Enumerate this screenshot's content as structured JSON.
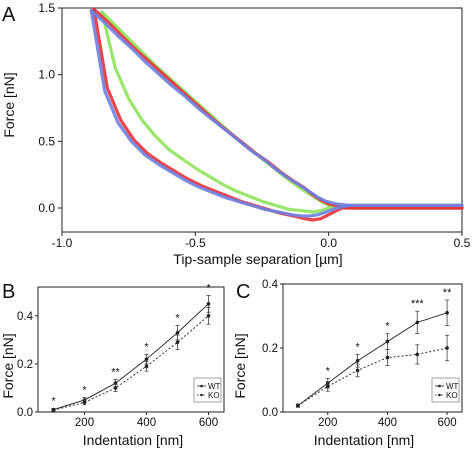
{
  "chart_data": [
    {
      "panel_label": "A",
      "type": "line",
      "xlabel": "Tip-sample separation [µm]",
      "ylabel": "Force [nN]",
      "xlim": [
        -1.0,
        0.5
      ],
      "ylim": [
        -0.18,
        1.5
      ],
      "xticks": [
        -1.0,
        -0.5,
        0.0,
        0.5
      ],
      "xtick_labels": [
        "-1.0",
        "-0.5",
        "0.0",
        "0.5"
      ],
      "yticks": [
        0.0,
        0.5,
        1.0,
        1.5
      ],
      "ytick_labels": [
        "0.0",
        "0.5",
        "1.0",
        "1.5"
      ],
      "grid": false,
      "series": [
        {
          "color": "#8fe35a",
          "x": [
            -0.85,
            -0.8,
            -0.75,
            -0.7,
            -0.65,
            -0.6,
            -0.55,
            -0.5,
            -0.45,
            -0.4,
            -0.35,
            -0.3,
            -0.25,
            -0.2,
            -0.15,
            -0.1,
            -0.06,
            -0.03,
            0.0,
            0.05,
            0.1,
            0.2,
            0.3,
            0.4,
            0.5
          ],
          "y_approach": [
            1.47,
            1.37,
            1.27,
            1.17,
            1.07,
            0.98,
            0.89,
            0.8,
            0.71,
            0.62,
            0.53,
            0.45,
            0.37,
            0.29,
            0.21,
            0.14,
            0.09,
            0.05,
            0.02,
            0.0,
            0.0,
            0.0,
            0.0,
            0.0,
            0.0
          ],
          "y_retract": [
            1.47,
            1.05,
            0.82,
            0.66,
            0.54,
            0.44,
            0.37,
            0.3,
            0.24,
            0.18,
            0.13,
            0.09,
            0.05,
            0.02,
            -0.01,
            -0.02,
            -0.03,
            -0.02,
            0.0,
            0.01,
            0.01,
            0.01,
            0.01,
            0.01,
            0.01
          ]
        },
        {
          "color": "#e8303a",
          "x": [
            -0.88,
            -0.83,
            -0.78,
            -0.73,
            -0.68,
            -0.63,
            -0.58,
            -0.53,
            -0.48,
            -0.43,
            -0.38,
            -0.33,
            -0.28,
            -0.23,
            -0.18,
            -0.13,
            -0.09,
            -0.06,
            -0.03,
            0.0,
            0.05,
            0.1,
            0.2,
            0.3,
            0.4,
            0.5
          ],
          "y_approach": [
            1.49,
            1.4,
            1.3,
            1.2,
            1.11,
            1.02,
            0.93,
            0.84,
            0.75,
            0.66,
            0.58,
            0.5,
            0.42,
            0.35,
            0.27,
            0.2,
            0.15,
            0.1,
            0.06,
            0.03,
            0.01,
            0.0,
            0.0,
            0.0,
            0.0,
            0.0
          ],
          "y_retract": [
            1.49,
            0.9,
            0.66,
            0.51,
            0.41,
            0.34,
            0.28,
            0.22,
            0.17,
            0.13,
            0.09,
            0.05,
            0.02,
            -0.01,
            -0.04,
            -0.06,
            -0.08,
            -0.09,
            -0.08,
            -0.05,
            0.0,
            0.0,
            0.0,
            0.0,
            0.0,
            0.0
          ]
        },
        {
          "color": "#6f7fe0",
          "x": [
            -0.89,
            -0.84,
            -0.79,
            -0.74,
            -0.69,
            -0.64,
            -0.59,
            -0.54,
            -0.49,
            -0.44,
            -0.39,
            -0.34,
            -0.29,
            -0.24,
            -0.19,
            -0.14,
            -0.1,
            -0.07,
            -0.04,
            -0.01,
            0.03,
            0.08,
            0.15,
            0.25,
            0.35,
            0.5
          ],
          "y_approach": [
            1.48,
            1.39,
            1.29,
            1.2,
            1.1,
            1.01,
            0.92,
            0.84,
            0.75,
            0.67,
            0.59,
            0.51,
            0.43,
            0.36,
            0.28,
            0.21,
            0.16,
            0.12,
            0.08,
            0.05,
            0.03,
            0.02,
            0.02,
            0.02,
            0.02,
            0.02
          ],
          "y_retract": [
            1.48,
            0.88,
            0.64,
            0.5,
            0.4,
            0.33,
            0.27,
            0.21,
            0.16,
            0.12,
            0.08,
            0.05,
            0.02,
            -0.01,
            -0.03,
            -0.05,
            -0.06,
            -0.06,
            -0.05,
            -0.03,
            0.0,
            0.02,
            0.02,
            0.02,
            0.02,
            0.02
          ]
        }
      ]
    },
    {
      "panel_label": "B",
      "type": "line",
      "xlabel": "Indentation [nm]",
      "ylabel": "Force [nN]",
      "xlim": [
        50,
        650
      ],
      "ylim": [
        0.0,
        0.52
      ],
      "xticks": [
        200,
        400,
        600
      ],
      "xtick_labels": [
        "200",
        "400",
        "600"
      ],
      "yticks": [
        0.0,
        0.2,
        0.4
      ],
      "ytick_labels": [
        "0.0",
        "0.2",
        "0.4"
      ],
      "legend": "bottom-right",
      "x": [
        100,
        200,
        300,
        400,
        500,
        600
      ],
      "annotations": [
        "*",
        "*",
        "**",
        "*",
        "*",
        "*"
      ],
      "series": [
        {
          "name": "WT",
          "style": "solid",
          "values": [
            0.01,
            0.05,
            0.12,
            0.22,
            0.33,
            0.45
          ],
          "err": [
            0.005,
            0.01,
            0.015,
            0.02,
            0.03,
            0.035
          ]
        },
        {
          "name": "KO",
          "style": "dotted",
          "values": [
            0.008,
            0.04,
            0.1,
            0.19,
            0.29,
            0.4
          ],
          "err": [
            0.005,
            0.01,
            0.015,
            0.02,
            0.03,
            0.035
          ]
        }
      ]
    },
    {
      "panel_label": "C",
      "type": "line",
      "xlabel": "Indentation [nm]",
      "ylabel": "Force [nN]",
      "xlim": [
        50,
        650
      ],
      "ylim": [
        0.0,
        0.4
      ],
      "xticks": [
        200,
        400,
        600
      ],
      "xtick_labels": [
        "200",
        "400",
        "600"
      ],
      "yticks": [
        0.0,
        0.2,
        0.4
      ],
      "ytick_labels": [
        "0.0",
        "0.2",
        "0.4"
      ],
      "legend": "bottom-right",
      "x": [
        100,
        200,
        300,
        400,
        500,
        600
      ],
      "annotations": [
        "",
        "*",
        "*",
        "*",
        "***",
        "**"
      ],
      "series": [
        {
          "name": "WT",
          "style": "solid",
          "values": [
            0.02,
            0.09,
            0.16,
            0.22,
            0.28,
            0.31
          ],
          "err": [
            0.005,
            0.015,
            0.02,
            0.025,
            0.035,
            0.04
          ]
        },
        {
          "name": "KO",
          "style": "dotted",
          "values": [
            0.02,
            0.08,
            0.13,
            0.17,
            0.18,
            0.2
          ],
          "err": [
            0.005,
            0.015,
            0.02,
            0.025,
            0.03,
            0.04
          ]
        }
      ]
    }
  ]
}
